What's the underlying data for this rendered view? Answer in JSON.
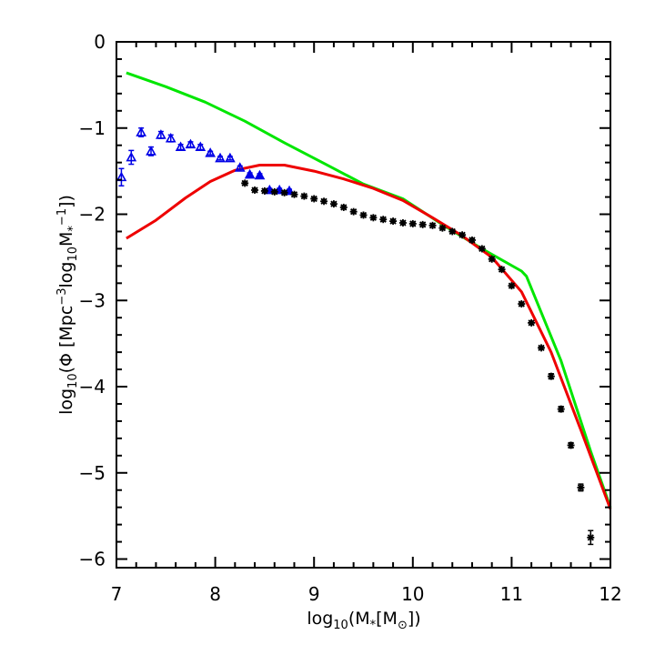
{
  "chart_data": {
    "type": "line",
    "title": "",
    "xlabel_parts": [
      "log",
      "10",
      "(M",
      "*",
      "[M",
      "⊙",
      "])"
    ],
    "ylabel_parts": [
      "log",
      "10",
      "(Φ  [Mpc",
      "−3",
      "log",
      "10",
      "M",
      "*",
      "−1",
      "])"
    ],
    "xlim": [
      7,
      12
    ],
    "ylim": [
      -6.1,
      0
    ],
    "xticks": [
      7,
      8,
      9,
      10,
      11,
      12
    ],
    "xtick_labels": [
      "7",
      "8",
      "9",
      "10",
      "11",
      "12"
    ],
    "yticks": [
      0,
      -1,
      -2,
      -3,
      -4,
      -5,
      -6
    ],
    "ytick_labels": [
      "0",
      "−1",
      "−2",
      "−3",
      "−4",
      "−5",
      "−6"
    ],
    "grid": false,
    "legend": "none",
    "series": [
      {
        "kind": "line",
        "color": "#00e600",
        "x": [
          7.1,
          7.5,
          7.9,
          8.3,
          8.7,
          9.1,
          9.5,
          9.9,
          10.3,
          10.7,
          11.1,
          11.15,
          11.5,
          11.8,
          12.0
        ],
        "y": [
          -0.36,
          -0.52,
          -0.7,
          -0.92,
          -1.17,
          -1.41,
          -1.65,
          -1.82,
          -2.12,
          -2.4,
          -2.66,
          -2.72,
          -3.7,
          -4.75,
          -5.4
        ]
      },
      {
        "kind": "line",
        "color": "#ee0000",
        "x": [
          7.1,
          7.4,
          7.7,
          7.95,
          8.2,
          8.45,
          8.7,
          9.0,
          9.3,
          9.6,
          9.9,
          10.2,
          10.5,
          10.8,
          11.1,
          11.4,
          11.7,
          12.0
        ],
        "y": [
          -2.28,
          -2.07,
          -1.81,
          -1.62,
          -1.49,
          -1.43,
          -1.43,
          -1.5,
          -1.59,
          -1.7,
          -1.84,
          -2.04,
          -2.25,
          -2.5,
          -2.9,
          -3.6,
          -4.5,
          -5.42
        ]
      },
      {
        "kind": "triangles",
        "color": "#0000e6",
        "x": [
          7.05,
          7.15,
          7.25,
          7.35,
          7.45,
          7.55,
          7.65,
          7.75,
          7.85,
          7.95,
          8.05,
          8.15,
          8.25,
          8.35,
          8.45,
          8.55,
          8.65,
          8.75
        ],
        "y": [
          -1.57,
          -1.34,
          -1.05,
          -1.27,
          -1.08,
          -1.12,
          -1.22,
          -1.19,
          -1.22,
          -1.29,
          -1.35,
          -1.35,
          -1.46,
          -1.54,
          -1.55,
          -1.72,
          -1.72,
          -1.73
        ],
        "err": [
          0.1,
          0.08,
          0.05,
          0.05,
          0.04,
          0.04,
          0.03,
          0.03,
          0.03,
          0.02,
          0.02,
          0.02,
          0.02,
          0.02,
          0.02,
          0.02,
          0.02,
          0.02
        ]
      },
      {
        "kind": "asterisks",
        "color": "#000000",
        "x": [
          8.3,
          8.4,
          8.5,
          8.6,
          8.7,
          8.8,
          8.9,
          9.0,
          9.1,
          9.2,
          9.3,
          9.4,
          9.5,
          9.6,
          9.7,
          9.8,
          9.9,
          10.0,
          10.1,
          10.2,
          10.3,
          10.4,
          10.5,
          10.6,
          10.7,
          10.8,
          10.9,
          11.0,
          11.1,
          11.2,
          11.3,
          11.4,
          11.5,
          11.6,
          11.7,
          11.8
        ],
        "y": [
          -1.64,
          -1.72,
          -1.73,
          -1.74,
          -1.75,
          -1.77,
          -1.79,
          -1.82,
          -1.85,
          -1.88,
          -1.92,
          -1.97,
          -2.01,
          -2.04,
          -2.06,
          -2.08,
          -2.1,
          -2.11,
          -2.12,
          -2.13,
          -2.16,
          -2.2,
          -2.24,
          -2.3,
          -2.4,
          -2.52,
          -2.64,
          -2.83,
          -3.04,
          -3.26,
          -3.55,
          -3.88,
          -4.26,
          -4.68,
          -5.17,
          -5.75
        ],
        "err": [
          0.02,
          0.02,
          0.02,
          0.02,
          0.02,
          0.02,
          0.02,
          0.02,
          0.02,
          0.02,
          0.02,
          0.02,
          0.02,
          0.02,
          0.02,
          0.02,
          0.02,
          0.02,
          0.02,
          0.02,
          0.02,
          0.02,
          0.02,
          0.02,
          0.02,
          0.02,
          0.02,
          0.02,
          0.02,
          0.02,
          0.02,
          0.03,
          0.03,
          0.03,
          0.04,
          0.08
        ]
      }
    ]
  }
}
